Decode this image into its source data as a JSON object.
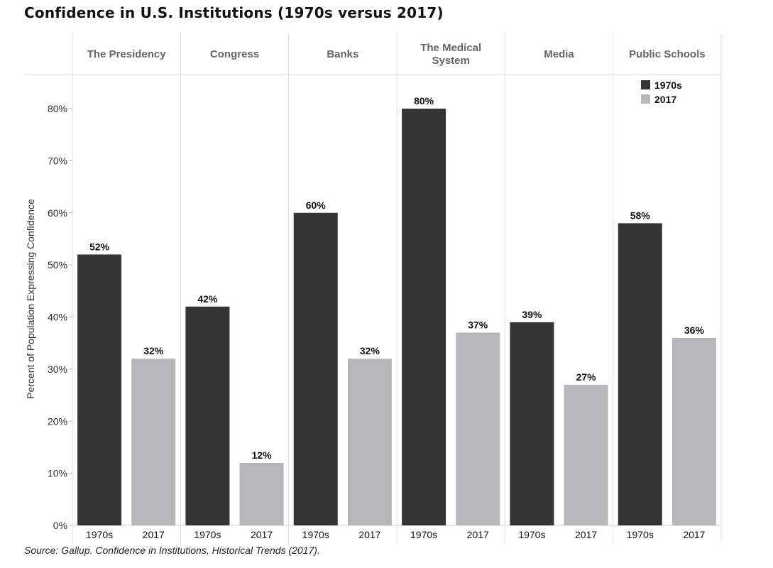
{
  "chart_data": {
    "type": "bar",
    "title": "Confidence in U.S. Institutions (1970s versus 2017)",
    "source": "Source: Gallup. Confidence in Institutions, Historical Trends (2017).",
    "ylabel": "Percent of Population Expressing Confidence",
    "xlabel": "",
    "ylim": [
      0,
      85
    ],
    "yticks": [
      0,
      10,
      20,
      30,
      40,
      50,
      60,
      70,
      80
    ],
    "ytick_labels": [
      "0%",
      "10%",
      "20%",
      "30%",
      "40%",
      "50%",
      "60%",
      "70%",
      "80%"
    ],
    "categories": [
      [
        "The Presidency"
      ],
      [
        "Congress"
      ],
      [
        "Banks"
      ],
      [
        "The Medical",
        "System"
      ],
      [
        "Media"
      ],
      [
        "Public Schools"
      ]
    ],
    "series": [
      {
        "name": "1970s",
        "color": "#353535",
        "values": [
          52,
          42,
          60,
          80,
          39,
          58
        ],
        "labels": [
          "52%",
          "42%",
          "60%",
          "80%",
          "39%",
          "58%"
        ]
      },
      {
        "name": "2017",
        "color": "#b7b7b9",
        "values": [
          32,
          12,
          32,
          37,
          27,
          36
        ],
        "labels": [
          "32%",
          "12%",
          "32%",
          "37%",
          "27%",
          "36%"
        ]
      }
    ],
    "legend_position": "top-right",
    "grid": false
  }
}
